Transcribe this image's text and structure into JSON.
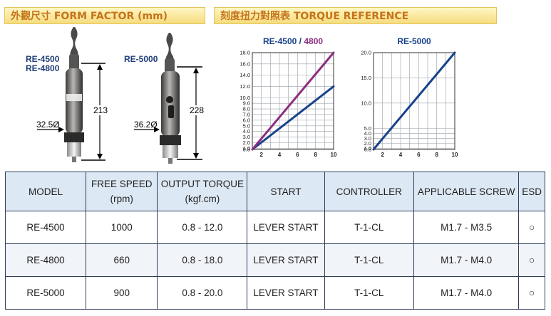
{
  "headers": {
    "form_factor": "外觀尺寸 FORM FACTOR (mm)",
    "torque_reference": "刻度扭力對照表 TORQUE REFERENCE"
  },
  "tools": [
    {
      "labels": [
        "RE-4500",
        "RE-4800"
      ],
      "height": "213",
      "diameter": "32.5Ø"
    },
    {
      "labels": [
        "RE-5000"
      ],
      "height": "228",
      "diameter": "36.2Ø"
    }
  ],
  "colors": {
    "re4500_line": "#17428c",
    "re4800_line": "#8e2d7e",
    "re5000_line": "#17428c",
    "header_text": "#c4741a",
    "label_blue": "#1f3e78"
  },
  "chart_data": [
    {
      "type": "line",
      "title_parts": [
        {
          "text": "RE-4500",
          "color": "#17428c"
        },
        {
          "text": " / ",
          "color": "#17428c"
        },
        {
          "text": "4800",
          "color": "#8e2d7e"
        }
      ],
      "x_ticks": [
        "2",
        "4",
        "6",
        "8",
        "10"
      ],
      "y_ticks": [
        "0.8",
        "1.0",
        "2.0",
        "3.0",
        "4.0",
        "5.0",
        "6.0",
        "7.0",
        "8.0",
        "9.0",
        "10.0",
        "12.0",
        "14.0",
        "16.0",
        "18.0"
      ],
      "xlim": [
        1,
        10
      ],
      "ylim": [
        0.8,
        18.0
      ],
      "grid": true,
      "series": [
        {
          "name": "RE-4500",
          "color": "#17428c",
          "x": [
            1,
            10
          ],
          "y": [
            0.8,
            12.0
          ]
        },
        {
          "name": "4800",
          "color": "#8e2d7e",
          "x": [
            1,
            10
          ],
          "y": [
            0.8,
            18.0
          ]
        }
      ]
    },
    {
      "type": "line",
      "title_parts": [
        {
          "text": "RE-5000",
          "color": "#17428c"
        }
      ],
      "x_ticks": [
        "2",
        "4",
        "6",
        "8",
        "10"
      ],
      "y_ticks": [
        "0.8",
        "1.0",
        "2.0",
        "3.0",
        "4.0",
        "5.0",
        "10.0",
        "15.0",
        "20.0"
      ],
      "xlim": [
        1,
        10
      ],
      "ylim": [
        0.8,
        20.0
      ],
      "grid": true,
      "series": [
        {
          "name": "RE-5000",
          "color": "#17428c",
          "x": [
            1,
            10
          ],
          "y": [
            0.8,
            20.0
          ]
        }
      ]
    }
  ],
  "table": {
    "columns": [
      [
        "MODEL"
      ],
      [
        "FREE SPEED",
        "(rpm)"
      ],
      [
        "OUTPUT TORQUE",
        "(kgf.cm)"
      ],
      [
        "START"
      ],
      [
        "CONTROLLER"
      ],
      [
        "APPLICABLE SCREW"
      ],
      [
        "ESD"
      ]
    ],
    "rows": [
      [
        "RE-4500",
        "1000",
        "0.8 - 12.0",
        "LEVER START",
        "T-1-CL",
        "M1.7 - M3.5",
        "○"
      ],
      [
        "RE-4800",
        "660",
        "0.8 - 18.0",
        "LEVER START",
        "T-1-CL",
        "M1.7 - M4.0",
        "○"
      ],
      [
        "RE-5000",
        "900",
        "0.8 - 20.0",
        "LEVER START",
        "T-1-CL",
        "M1.7 - M4.0",
        "○"
      ]
    ]
  }
}
